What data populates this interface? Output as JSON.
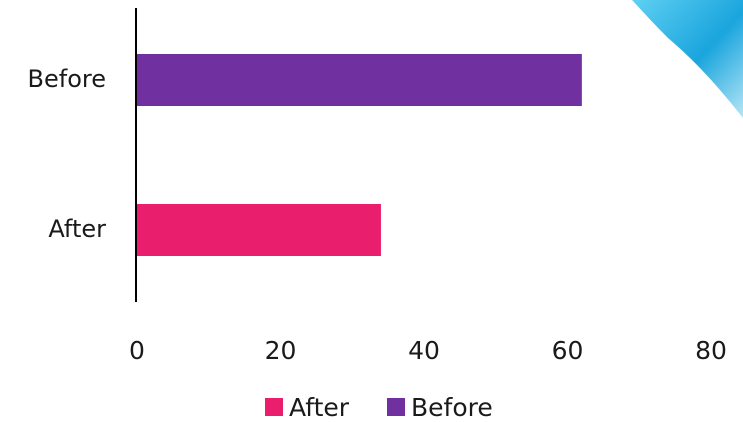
{
  "chart_data": {
    "type": "bar",
    "orientation": "horizontal",
    "categories": [
      "After",
      "Before"
    ],
    "values": [
      34,
      62
    ],
    "colors": {
      "After": "#e91e6c",
      "Before": "#7030a0"
    },
    "xlim": [
      0,
      80
    ],
    "xticks": [
      "0",
      "20",
      "40",
      "60",
      "80"
    ],
    "title": "",
    "xlabel": "",
    "ylabel": "",
    "grid": false,
    "legend": {
      "position": "bottom",
      "entries": [
        "After",
        "Before"
      ]
    }
  },
  "decoration": {
    "corner_swoosh_colors": [
      "#5fd0f3",
      "#1aa5dd",
      "#b5e6f7"
    ]
  }
}
